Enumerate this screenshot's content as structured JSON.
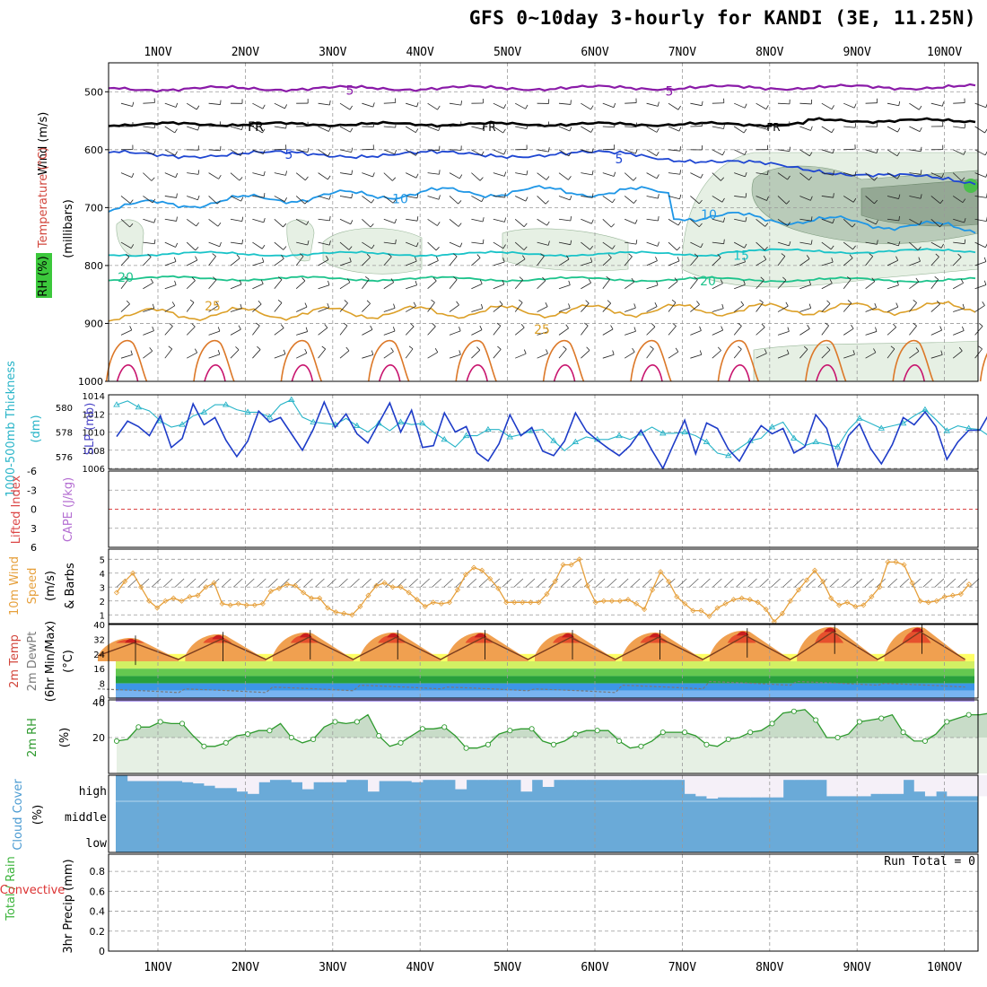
{
  "title": "GFS 0~10day 3-hourly for KANDI (3E, 11.25N)",
  "days": [
    "1NOV",
    "2NOV",
    "3NOV",
    "4NOV",
    "5NOV",
    "6NOV",
    "7NOV",
    "8NOV",
    "9NOV",
    "10NOV"
  ],
  "run_total_label": "Run Total = 0",
  "colors": {
    "temp_contour": "#8a1aa8",
    "freezing": "#000000",
    "blue5": "#1e46d2",
    "blue10": "#1e96e6",
    "cyan15": "#19c3c8",
    "green20": "#1ec38c",
    "orange25": "#dca028",
    "rh_fill": "#e6f0e4",
    "slp_line": "#1e3cc8",
    "thickness_line": "#28b4c8",
    "wind10m": "#e6a03c",
    "cloud": "#6aaad8",
    "rh2m": "#2e9a2e"
  },
  "chart_data": [
    {
      "panel": "upper-air",
      "type": "line",
      "ylabel": "(millibars)",
      "legend_labels": [
        "Wind (m/s)",
        "Temperature (°C)",
        "RH (%)"
      ],
      "y_ticks": [
        500,
        600,
        700,
        800,
        900,
        1000
      ],
      "ylim": [
        1000,
        450
      ],
      "contour_labels": [
        {
          "label": "5",
          "level_mb": 497
        },
        {
          "label": "FR",
          "level_mb": 560
        },
        {
          "label": "5",
          "level_mb": 608
        },
        {
          "label": "10",
          "level_mb": 685
        },
        {
          "label": "15",
          "level_mb": 782
        },
        {
          "label": "20",
          "level_mb": 820
        },
        {
          "label": "25",
          "level_mb": 870
        }
      ]
    },
    {
      "panel": "slp-thickness",
      "type": "line",
      "ylabel_left": "1000-500mb Thickness (dm)",
      "ylabel_right": "SLP (mb)",
      "left_ticks": [
        576,
        578,
        580
      ],
      "right_ticks": [
        1006,
        1008,
        1010,
        1012,
        1014
      ],
      "series": [
        {
          "name": "SLP (mb)",
          "values": [
            1009.5,
            1011.2,
            1010.6,
            1009.6,
            1011.8,
            1008.3,
            1009.3,
            1013.1,
            1010.8,
            1011.6,
            1009.1,
            1007.3,
            1009.0,
            1012.3,
            1011.1,
            1011.6,
            1009.8,
            1008.0,
            1010.3,
            1013.3,
            1010.5,
            1012.0,
            1009.8,
            1008.8,
            1011.0,
            1013.2,
            1010.0,
            1012.4,
            1008.3,
            1008.5,
            1012.1,
            1010.0,
            1010.6,
            1007.7,
            1006.8,
            1008.7,
            1011.9,
            1009.6,
            1010.5,
            1007.9,
            1007.4,
            1009.0,
            1012.1,
            1010.1,
            1009.1,
            1008.2,
            1007.4,
            1008.5,
            1010.2,
            1008.0,
            1006.0,
            1008.7,
            1011.3,
            1007.6,
            1011.0,
            1010.4,
            1008.1,
            1006.8,
            1008.9,
            1010.7,
            1009.8,
            1010.4,
            1007.7,
            1008.4,
            1011.9,
            1010.4,
            1006.3,
            1009.6,
            1010.9,
            1008.2,
            1006.5,
            1008.6,
            1011.6,
            1010.8,
            1012.2,
            1010.6,
            1007.0,
            1008.9,
            1010.2,
            1010.2,
            1012.3
          ]
        },
        {
          "name": "Thickness (dm)",
          "values": [
            580.2,
            580.5,
            580.0,
            579.7,
            578.9,
            578.4,
            578.6,
            579.3,
            579.6,
            580.2,
            580.2,
            579.8,
            579.6,
            579.6,
            579.2,
            580.2,
            580.6,
            579.2,
            578.8,
            578.7,
            578.6,
            579.1,
            578.5,
            578.0,
            578.7,
            578.1,
            578.8,
            578.6,
            578.7,
            578.0,
            577.4,
            576.8,
            577.7,
            577.7,
            578.2,
            578.2,
            577.6,
            577.8,
            578.1,
            578.2,
            577.3,
            576.5,
            577.2,
            577.6,
            577.4,
            577.4,
            577.7,
            577.4,
            577.9,
            578.4,
            577.9,
            577.9,
            578.0,
            577.7,
            577.2,
            576.3,
            576.1,
            576.7,
            577.3,
            577.5,
            578.4,
            578.8,
            577.5,
            576.9,
            577.2,
            577.0,
            576.8,
            578.2,
            579.1,
            578.7,
            578.3,
            578.5,
            578.7,
            579.3,
            579.8,
            579.0,
            578.1,
            578.5,
            578.3,
            578.2,
            577.6
          ]
        }
      ]
    },
    {
      "panel": "stability",
      "type": "line",
      "ylabel_left": "Lifted Index",
      "ylabel_right": "CAPE (J/kg)",
      "left_ticks": [
        "6",
        "3",
        "0",
        "-3",
        "-6"
      ],
      "series": [
        {
          "name": "Lifted Index",
          "values": [
            0,
            0,
            0,
            0,
            0,
            0,
            0,
            0,
            0,
            0,
            0,
            0,
            0,
            0,
            0,
            0,
            0,
            0,
            0,
            0,
            0,
            0,
            0,
            0,
            0,
            0,
            0,
            0,
            0,
            0,
            0,
            0,
            0,
            0,
            0,
            0,
            0,
            0,
            0,
            0,
            0,
            0,
            0,
            0,
            0,
            0,
            0,
            0,
            0,
            0,
            0,
            0,
            0,
            0,
            0,
            0,
            0,
            0,
            0,
            0,
            0,
            0,
            0,
            0,
            0,
            0,
            0,
            0,
            0,
            0,
            0,
            0,
            0,
            0,
            0,
            0,
            0,
            0,
            0,
            0,
            0
          ]
        }
      ]
    },
    {
      "panel": "wind10m",
      "type": "line",
      "ylabel": "10m Wind Speed (m/s) & Barbs",
      "y_ticks": [
        1,
        2,
        3,
        4,
        5
      ],
      "series": [
        {
          "name": "10m Wind Speed (m/s)",
          "values": [
            2.6,
            3.4,
            4.0,
            3.0,
            2.0,
            1.5,
            2.0,
            2.2,
            2.0,
            2.3,
            2.4,
            3.0,
            3.3,
            1.8,
            1.7,
            1.8,
            1.7,
            1.7,
            1.8,
            2.7,
            2.9,
            3.2,
            3.1,
            2.6,
            2.2,
            2.2,
            1.5,
            1.2,
            1.1,
            1.0,
            1.6,
            2.4,
            3.1,
            3.3,
            3.0,
            3.0,
            2.6,
            2.1,
            1.6,
            1.9,
            1.8,
            1.9,
            2.8,
            3.9,
            4.4,
            4.2,
            3.6,
            2.9,
            1.9,
            1.9,
            1.9,
            1.9,
            1.9,
            2.5,
            3.4,
            4.6,
            4.6,
            5.0,
            3.1,
            1.9,
            2.0,
            2.0,
            2.0,
            2.1,
            1.8,
            1.4,
            2.8,
            4.1,
            3.4,
            2.3,
            1.8,
            1.3,
            1.3,
            0.9,
            1.5,
            1.8,
            2.1,
            2.2,
            2.1,
            1.9,
            1.4,
            0.5,
            1.1,
            2.0,
            2.8,
            3.5,
            4.2,
            3.4,
            2.2,
            1.7,
            1.9,
            1.6,
            1.7,
            2.3,
            3.0,
            4.8,
            4.8,
            4.6,
            3.3,
            2.0,
            1.9,
            2.0,
            2.3,
            2.4,
            2.5,
            3.2
          ]
        }
      ]
    },
    {
      "panel": "temperature2m",
      "type": "area",
      "ylabel": "2m Temp / 2m DewPt (6hr Min/Max) (°C)",
      "y_ticks": [
        0,
        8,
        16,
        24,
        32,
        40
      ],
      "series": [
        {
          "name": "2m Temp daily max (°C)",
          "values": [
            32,
            34,
            35,
            35,
            35,
            35,
            35,
            36,
            38,
            38
          ]
        },
        {
          "name": "2m Temp daily min (°C)",
          "values": [
            21,
            21,
            21,
            21,
            21,
            21,
            21,
            21,
            21,
            21
          ]
        },
        {
          "name": "2m DewPt (°C)",
          "values": [
            4,
            4,
            5,
            6,
            5,
            4,
            6,
            8,
            8,
            7
          ]
        }
      ]
    },
    {
      "panel": "rh2m",
      "type": "line",
      "ylabel": "2m RH (%)",
      "y_ticks": [
        20,
        40
      ],
      "series": [
        {
          "name": "2m RH (%)",
          "values": [
            18,
            19,
            26,
            26,
            29,
            28,
            28,
            21,
            15,
            15,
            17,
            21,
            22,
            24,
            24,
            28,
            20,
            17,
            19,
            26,
            29,
            28,
            29,
            33,
            21,
            15,
            17,
            21,
            25,
            25,
            26,
            21,
            14,
            14,
            16,
            22,
            24,
            25,
            25,
            18,
            16,
            18,
            22,
            24,
            24,
            24,
            18,
            14,
            15,
            18,
            23,
            23,
            23,
            21,
            16,
            15,
            19,
            20,
            23,
            24,
            28,
            34,
            35,
            36,
            30,
            20,
            20,
            22,
            29,
            30,
            31,
            33,
            23,
            18,
            18,
            22,
            29,
            31,
            33,
            33,
            34
          ]
        }
      ]
    },
    {
      "panel": "cloud-cover",
      "type": "area",
      "ylabel": "Cloud Cover (%)",
      "row_labels": [
        "high",
        "middle",
        "low"
      ],
      "series": [
        {
          "name": "high cloud (%)",
          "values": [
            100,
            75,
            75,
            75,
            75,
            75,
            70,
            65,
            55,
            45,
            45,
            30,
            20,
            70,
            80,
            80,
            70,
            40,
            70,
            70,
            70,
            80,
            80,
            30,
            75,
            75,
            75,
            70,
            80,
            80,
            80,
            40,
            80,
            80,
            80,
            80,
            80,
            30,
            80,
            50,
            80,
            80,
            80,
            80,
            80,
            80,
            80,
            80,
            80,
            80,
            80,
            80,
            20,
            10,
            0,
            5,
            5,
            5,
            5,
            5,
            5,
            80,
            80,
            80,
            80,
            10,
            10,
            10,
            10,
            20,
            20,
            20,
            80,
            30,
            10,
            30,
            10,
            10,
            10,
            10,
            10
          ]
        }
      ]
    },
    {
      "panel": "precipitation",
      "type": "bar",
      "ylabel": "3hr Precip (mm)",
      "legend_labels": [
        "Total / Rain",
        "Convective"
      ],
      "y_ticks": [
        0,
        0.2,
        0.4,
        0.6,
        0.8
      ],
      "series": [
        {
          "name": "3hr Precip (mm)",
          "values": [
            0,
            0,
            0,
            0,
            0,
            0,
            0,
            0,
            0,
            0,
            0,
            0,
            0,
            0,
            0,
            0,
            0,
            0,
            0,
            0,
            0,
            0,
            0,
            0,
            0,
            0,
            0,
            0,
            0,
            0,
            0,
            0,
            0,
            0,
            0,
            0,
            0,
            0,
            0,
            0,
            0,
            0,
            0,
            0,
            0,
            0,
            0,
            0,
            0,
            0,
            0,
            0,
            0,
            0,
            0,
            0,
            0,
            0,
            0,
            0,
            0,
            0,
            0,
            0,
            0,
            0,
            0,
            0,
            0,
            0,
            0,
            0,
            0,
            0,
            0,
            0,
            0,
            0,
            0,
            0,
            0
          ]
        }
      ]
    }
  ]
}
